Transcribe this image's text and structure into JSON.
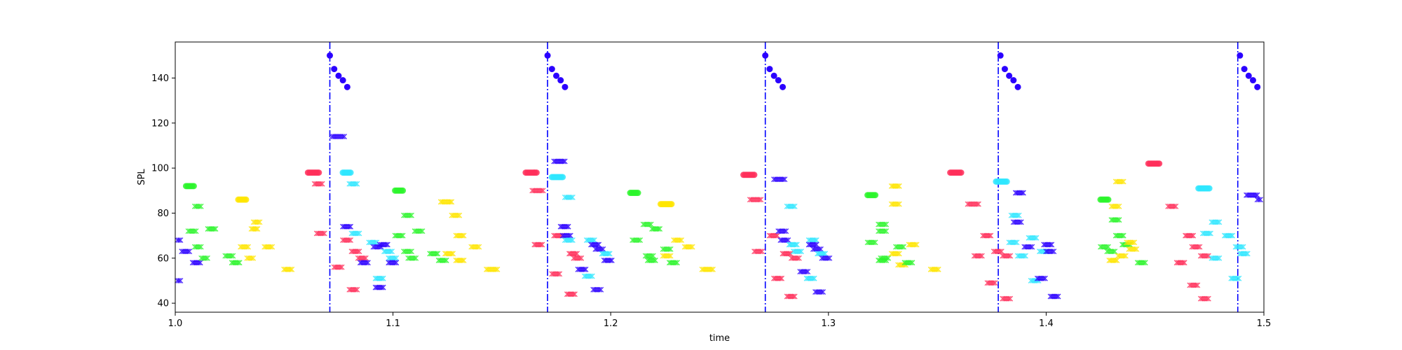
{
  "chart_data": {
    "type": "scatter",
    "title": "",
    "xlabel": "time",
    "ylabel": "SPL",
    "xlim": [
      1.0,
      1.5
    ],
    "ylim": [
      36,
      156
    ],
    "xticks": [
      1.0,
      1.1,
      1.2,
      1.3,
      1.4,
      1.5
    ],
    "xtick_labels": [
      "1.0",
      "1.1",
      "1.2",
      "1.3",
      "1.4",
      "1.5"
    ],
    "yticks": [
      40,
      60,
      80,
      100,
      120,
      140
    ],
    "ytick_labels": [
      "40",
      "60",
      "80",
      "100",
      "120",
      "140"
    ],
    "grid": false,
    "legend": "none",
    "colors": {
      "red": "#ff2f5a",
      "yellow": "#ffe500",
      "green": "#2bf52b",
      "cyan": "#2ee6ff",
      "blue": "#2b00ff",
      "vline": "#0000ff"
    },
    "vlines": [
      1.071,
      1.171,
      1.271,
      1.378,
      1.488
    ],
    "onset_markers": [
      {
        "x": 1.071,
        "y": 150
      },
      {
        "x": 1.073,
        "y": 144
      },
      {
        "x": 1.075,
        "y": 141
      },
      {
        "x": 1.077,
        "y": 139
      },
      {
        "x": 1.079,
        "y": 136
      },
      {
        "x": 1.171,
        "y": 150
      },
      {
        "x": 1.173,
        "y": 144
      },
      {
        "x": 1.175,
        "y": 141
      },
      {
        "x": 1.177,
        "y": 139
      },
      {
        "x": 1.179,
        "y": 136
      },
      {
        "x": 1.271,
        "y": 150
      },
      {
        "x": 1.273,
        "y": 144
      },
      {
        "x": 1.275,
        "y": 141
      },
      {
        "x": 1.277,
        "y": 139
      },
      {
        "x": 1.279,
        "y": 136
      },
      {
        "x": 1.379,
        "y": 150
      },
      {
        "x": 1.381,
        "y": 144
      },
      {
        "x": 1.383,
        "y": 141
      },
      {
        "x": 1.385,
        "y": 139
      },
      {
        "x": 1.387,
        "y": 136
      },
      {
        "x": 1.489,
        "y": 150
      },
      {
        "x": 1.491,
        "y": 144
      },
      {
        "x": 1.493,
        "y": 141
      },
      {
        "x": 1.495,
        "y": 139
      },
      {
        "x": 1.497,
        "y": 136
      }
    ],
    "notes": [
      {
        "c": "blue",
        "x0": 1.0,
        "x1": 1.004,
        "y": 50
      },
      {
        "c": "blue",
        "x0": 1.0,
        "x1": 1.004,
        "y": 68
      },
      {
        "c": "blue",
        "x0": 1.002,
        "x1": 1.008,
        "y": 63
      },
      {
        "c": "blue",
        "x0": 1.007,
        "x1": 1.013,
        "y": 58
      },
      {
        "c": "green",
        "x0": 1.004,
        "x1": 1.01,
        "y": 92,
        "dot": true
      },
      {
        "c": "green",
        "x0": 1.005,
        "x1": 1.011,
        "y": 72
      },
      {
        "c": "green",
        "x0": 1.008,
        "x1": 1.013,
        "y": 83
      },
      {
        "c": "green",
        "x0": 1.008,
        "x1": 1.013,
        "y": 65
      },
      {
        "c": "green",
        "x0": 1.011,
        "x1": 1.016,
        "y": 60
      },
      {
        "c": "green",
        "x0": 1.014,
        "x1": 1.02,
        "y": 73
      },
      {
        "c": "green",
        "x0": 1.022,
        "x1": 1.028,
        "y": 61
      },
      {
        "c": "green",
        "x0": 1.025,
        "x1": 1.031,
        "y": 58
      },
      {
        "c": "yellow",
        "x0": 1.028,
        "x1": 1.034,
        "y": 86,
        "dot": true
      },
      {
        "c": "yellow",
        "x0": 1.029,
        "x1": 1.035,
        "y": 65
      },
      {
        "c": "yellow",
        "x0": 1.032,
        "x1": 1.037,
        "y": 60
      },
      {
        "c": "yellow",
        "x0": 1.034,
        "x1": 1.039,
        "y": 73
      },
      {
        "c": "yellow",
        "x0": 1.035,
        "x1": 1.04,
        "y": 76
      },
      {
        "c": "yellow",
        "x0": 1.04,
        "x1": 1.046,
        "y": 65
      },
      {
        "c": "yellow",
        "x0": 1.049,
        "x1": 1.055,
        "y": 55
      },
      {
        "c": "red",
        "x0": 1.06,
        "x1": 1.067,
        "y": 98,
        "dot": true
      },
      {
        "c": "red",
        "x0": 1.063,
        "x1": 1.069,
        "y": 93
      },
      {
        "c": "red",
        "x0": 1.064,
        "x1": 1.07,
        "y": 71
      },
      {
        "c": "blue",
        "x0": 1.071,
        "x1": 1.079,
        "y": 114
      },
      {
        "c": "red",
        "x0": 1.072,
        "x1": 1.078,
        "y": 56
      },
      {
        "c": "red",
        "x0": 1.076,
        "x1": 1.082,
        "y": 68
      },
      {
        "c": "blue",
        "x0": 1.076,
        "x1": 1.082,
        "y": 74
      },
      {
        "c": "cyan",
        "x0": 1.076,
        "x1": 1.082,
        "y": 98,
        "dot": true
      },
      {
        "c": "cyan",
        "x0": 1.079,
        "x1": 1.085,
        "y": 93
      },
      {
        "c": "red",
        "x0": 1.079,
        "x1": 1.085,
        "y": 46
      },
      {
        "c": "red",
        "x0": 1.08,
        "x1": 1.086,
        "y": 63
      },
      {
        "c": "cyan",
        "x0": 1.08,
        "x1": 1.086,
        "y": 71
      },
      {
        "c": "red",
        "x0": 1.083,
        "x1": 1.089,
        "y": 60
      },
      {
        "c": "blue",
        "x0": 1.084,
        "x1": 1.09,
        "y": 58
      },
      {
        "c": "cyan",
        "x0": 1.088,
        "x1": 1.094,
        "y": 67
      },
      {
        "c": "blue",
        "x0": 1.09,
        "x1": 1.096,
        "y": 65
      },
      {
        "c": "cyan",
        "x0": 1.091,
        "x1": 1.097,
        "y": 51
      },
      {
        "c": "blue",
        "x0": 1.091,
        "x1": 1.097,
        "y": 47
      },
      {
        "c": "blue",
        "x0": 1.093,
        "x1": 1.099,
        "y": 66
      },
      {
        "c": "cyan",
        "x0": 1.095,
        "x1": 1.101,
        "y": 63
      },
      {
        "c": "cyan",
        "x0": 1.097,
        "x1": 1.103,
        "y": 60
      },
      {
        "c": "blue",
        "x0": 1.097,
        "x1": 1.103,
        "y": 58
      },
      {
        "c": "green",
        "x0": 1.1,
        "x1": 1.106,
        "y": 90,
        "dot": true
      },
      {
        "c": "green",
        "x0": 1.1,
        "x1": 1.106,
        "y": 70
      },
      {
        "c": "green",
        "x0": 1.104,
        "x1": 1.11,
        "y": 63
      },
      {
        "c": "green",
        "x0": 1.106,
        "x1": 1.112,
        "y": 60
      },
      {
        "c": "green",
        "x0": 1.104,
        "x1": 1.11,
        "y": 79
      },
      {
        "c": "green",
        "x0": 1.109,
        "x1": 1.115,
        "y": 72
      },
      {
        "c": "green",
        "x0": 1.116,
        "x1": 1.122,
        "y": 62
      },
      {
        "c": "green",
        "x0": 1.12,
        "x1": 1.126,
        "y": 59
      },
      {
        "c": "yellow",
        "x0": 1.121,
        "x1": 1.128,
        "y": 85
      },
      {
        "c": "yellow",
        "x0": 1.123,
        "x1": 1.129,
        "y": 62
      },
      {
        "c": "yellow",
        "x0": 1.126,
        "x1": 1.132,
        "y": 79
      },
      {
        "c": "yellow",
        "x0": 1.128,
        "x1": 1.134,
        "y": 70
      },
      {
        "c": "yellow",
        "x0": 1.128,
        "x1": 1.134,
        "y": 59
      },
      {
        "c": "yellow",
        "x0": 1.135,
        "x1": 1.141,
        "y": 65
      },
      {
        "c": "yellow",
        "x0": 1.142,
        "x1": 1.149,
        "y": 55
      },
      {
        "c": "red",
        "x0": 1.16,
        "x1": 1.167,
        "y": 98,
        "dot": true
      },
      {
        "c": "red",
        "x0": 1.163,
        "x1": 1.17,
        "y": 90
      },
      {
        "c": "red",
        "x0": 1.164,
        "x1": 1.17,
        "y": 66
      },
      {
        "c": "blue",
        "x0": 1.173,
        "x1": 1.18,
        "y": 103
      },
      {
        "c": "cyan",
        "x0": 1.172,
        "x1": 1.179,
        "y": 96,
        "dot": true
      },
      {
        "c": "red",
        "x0": 1.172,
        "x1": 1.178,
        "y": 53
      },
      {
        "c": "red",
        "x0": 1.173,
        "x1": 1.179,
        "y": 70
      },
      {
        "c": "blue",
        "x0": 1.176,
        "x1": 1.182,
        "y": 74
      },
      {
        "c": "blue",
        "x0": 1.177,
        "x1": 1.183,
        "y": 70
      },
      {
        "c": "cyan",
        "x0": 1.178,
        "x1": 1.184,
        "y": 87
      },
      {
        "c": "cyan",
        "x0": 1.178,
        "x1": 1.184,
        "y": 68
      },
      {
        "c": "red",
        "x0": 1.179,
        "x1": 1.185,
        "y": 44
      },
      {
        "c": "red",
        "x0": 1.18,
        "x1": 1.186,
        "y": 62
      },
      {
        "c": "red",
        "x0": 1.182,
        "x1": 1.188,
        "y": 60
      },
      {
        "c": "blue",
        "x0": 1.184,
        "x1": 1.19,
        "y": 55
      },
      {
        "c": "cyan",
        "x0": 1.187,
        "x1": 1.193,
        "y": 52
      },
      {
        "c": "cyan",
        "x0": 1.188,
        "x1": 1.194,
        "y": 68
      },
      {
        "c": "blue",
        "x0": 1.19,
        "x1": 1.196,
        "y": 66
      },
      {
        "c": "blue",
        "x0": 1.191,
        "x1": 1.197,
        "y": 46
      },
      {
        "c": "blue",
        "x0": 1.192,
        "x1": 1.198,
        "y": 64
      },
      {
        "c": "cyan",
        "x0": 1.195,
        "x1": 1.201,
        "y": 62
      },
      {
        "c": "blue",
        "x0": 1.196,
        "x1": 1.202,
        "y": 59
      },
      {
        "c": "green",
        "x0": 1.208,
        "x1": 1.214,
        "y": 89,
        "dot": true
      },
      {
        "c": "green",
        "x0": 1.209,
        "x1": 1.215,
        "y": 68
      },
      {
        "c": "green",
        "x0": 1.214,
        "x1": 1.22,
        "y": 75
      },
      {
        "c": "green",
        "x0": 1.215,
        "x1": 1.221,
        "y": 61
      },
      {
        "c": "green",
        "x0": 1.216,
        "x1": 1.222,
        "y": 59
      },
      {
        "c": "green",
        "x0": 1.218,
        "x1": 1.224,
        "y": 73
      },
      {
        "c": "yellow",
        "x0": 1.222,
        "x1": 1.229,
        "y": 84,
        "dot": true
      },
      {
        "c": "green",
        "x0": 1.223,
        "x1": 1.229,
        "y": 64
      },
      {
        "c": "yellow",
        "x0": 1.223,
        "x1": 1.229,
        "y": 61
      },
      {
        "c": "green",
        "x0": 1.226,
        "x1": 1.232,
        "y": 58
      },
      {
        "c": "yellow",
        "x0": 1.228,
        "x1": 1.234,
        "y": 68
      },
      {
        "c": "yellow",
        "x0": 1.233,
        "x1": 1.239,
        "y": 65
      },
      {
        "c": "yellow",
        "x0": 1.241,
        "x1": 1.248,
        "y": 55
      },
      {
        "c": "red",
        "x0": 1.26,
        "x1": 1.267,
        "y": 97,
        "dot": true
      },
      {
        "c": "red",
        "x0": 1.263,
        "x1": 1.27,
        "y": 86
      },
      {
        "c": "red",
        "x0": 1.265,
        "x1": 1.271,
        "y": 63
      },
      {
        "c": "blue",
        "x0": 1.274,
        "x1": 1.281,
        "y": 95
      },
      {
        "c": "red",
        "x0": 1.272,
        "x1": 1.278,
        "y": 70
      },
      {
        "c": "red",
        "x0": 1.274,
        "x1": 1.28,
        "y": 51
      },
      {
        "c": "blue",
        "x0": 1.276,
        "x1": 1.282,
        "y": 72
      },
      {
        "c": "blue",
        "x0": 1.277,
        "x1": 1.283,
        "y": 68
      },
      {
        "c": "cyan",
        "x0": 1.28,
        "x1": 1.286,
        "y": 83
      },
      {
        "c": "red",
        "x0": 1.28,
        "x1": 1.286,
        "y": 43
      },
      {
        "c": "red",
        "x0": 1.278,
        "x1": 1.284,
        "y": 62
      },
      {
        "c": "cyan",
        "x0": 1.281,
        "x1": 1.287,
        "y": 66
      },
      {
        "c": "red",
        "x0": 1.282,
        "x1": 1.288,
        "y": 60
      },
      {
        "c": "cyan",
        "x0": 1.283,
        "x1": 1.289,
        "y": 63
      },
      {
        "c": "blue",
        "x0": 1.286,
        "x1": 1.292,
        "y": 54
      },
      {
        "c": "cyan",
        "x0": 1.289,
        "x1": 1.295,
        "y": 51
      },
      {
        "c": "cyan",
        "x0": 1.29,
        "x1": 1.296,
        "y": 68
      },
      {
        "c": "blue",
        "x0": 1.29,
        "x1": 1.296,
        "y": 66
      },
      {
        "c": "blue",
        "x0": 1.293,
        "x1": 1.299,
        "y": 45
      },
      {
        "c": "blue",
        "x0": 1.292,
        "x1": 1.298,
        "y": 64
      },
      {
        "c": "cyan",
        "x0": 1.294,
        "x1": 1.3,
        "y": 62
      },
      {
        "c": "blue",
        "x0": 1.296,
        "x1": 1.302,
        "y": 60
      },
      {
        "c": "green",
        "x0": 1.317,
        "x1": 1.323,
        "y": 88,
        "dot": true
      },
      {
        "c": "green",
        "x0": 1.317,
        "x1": 1.323,
        "y": 67
      },
      {
        "c": "green",
        "x0": 1.322,
        "x1": 1.328,
        "y": 75
      },
      {
        "c": "green",
        "x0": 1.322,
        "x1": 1.328,
        "y": 72
      },
      {
        "c": "green",
        "x0": 1.323,
        "x1": 1.329,
        "y": 60
      },
      {
        "c": "green",
        "x0": 1.322,
        "x1": 1.328,
        "y": 59
      },
      {
        "c": "yellow",
        "x0": 1.328,
        "x1": 1.334,
        "y": 92
      },
      {
        "c": "yellow",
        "x0": 1.328,
        "x1": 1.334,
        "y": 84
      },
      {
        "c": "yellow",
        "x0": 1.328,
        "x1": 1.334,
        "y": 62
      },
      {
        "c": "green",
        "x0": 1.33,
        "x1": 1.336,
        "y": 65
      },
      {
        "c": "yellow",
        "x0": 1.331,
        "x1": 1.337,
        "y": 57
      },
      {
        "c": "green",
        "x0": 1.334,
        "x1": 1.34,
        "y": 58
      },
      {
        "c": "yellow",
        "x0": 1.336,
        "x1": 1.342,
        "y": 66
      },
      {
        "c": "yellow",
        "x0": 1.346,
        "x1": 1.352,
        "y": 55
      },
      {
        "c": "red",
        "x0": 1.355,
        "x1": 1.362,
        "y": 98,
        "dot": true
      },
      {
        "c": "red",
        "x0": 1.363,
        "x1": 1.37,
        "y": 84
      },
      {
        "c": "red",
        "x0": 1.366,
        "x1": 1.372,
        "y": 61
      },
      {
        "c": "red",
        "x0": 1.37,
        "x1": 1.376,
        "y": 70
      },
      {
        "c": "red",
        "x0": 1.372,
        "x1": 1.378,
        "y": 49
      },
      {
        "c": "red",
        "x0": 1.375,
        "x1": 1.381,
        "y": 63
      },
      {
        "c": "cyan",
        "x0": 1.376,
        "x1": 1.383,
        "y": 94,
        "dot": true
      },
      {
        "c": "red",
        "x0": 1.379,
        "x1": 1.385,
        "y": 42
      },
      {
        "c": "red",
        "x0": 1.379,
        "x1": 1.385,
        "y": 61
      },
      {
        "c": "blue",
        "x0": 1.385,
        "x1": 1.391,
        "y": 89
      },
      {
        "c": "cyan",
        "x0": 1.383,
        "x1": 1.389,
        "y": 79
      },
      {
        "c": "blue",
        "x0": 1.384,
        "x1": 1.39,
        "y": 76
      },
      {
        "c": "cyan",
        "x0": 1.382,
        "x1": 1.388,
        "y": 67
      },
      {
        "c": "cyan",
        "x0": 1.386,
        "x1": 1.392,
        "y": 61
      },
      {
        "c": "blue",
        "x0": 1.389,
        "x1": 1.395,
        "y": 65
      },
      {
        "c": "cyan",
        "x0": 1.391,
        "x1": 1.397,
        "y": 69
      },
      {
        "c": "cyan",
        "x0": 1.392,
        "x1": 1.398,
        "y": 50
      },
      {
        "c": "blue",
        "x0": 1.395,
        "x1": 1.401,
        "y": 51
      },
      {
        "c": "cyan",
        "x0": 1.396,
        "x1": 1.402,
        "y": 63
      },
      {
        "c": "blue",
        "x0": 1.398,
        "x1": 1.404,
        "y": 66
      },
      {
        "c": "blue",
        "x0": 1.399,
        "x1": 1.405,
        "y": 63
      },
      {
        "c": "blue",
        "x0": 1.401,
        "x1": 1.407,
        "y": 43
      },
      {
        "c": "green",
        "x0": 1.424,
        "x1": 1.43,
        "y": 86,
        "dot": true
      },
      {
        "c": "green",
        "x0": 1.424,
        "x1": 1.43,
        "y": 65
      },
      {
        "c": "green",
        "x0": 1.427,
        "x1": 1.433,
        "y": 63
      },
      {
        "c": "green",
        "x0": 1.429,
        "x1": 1.435,
        "y": 77
      },
      {
        "c": "yellow",
        "x0": 1.429,
        "x1": 1.435,
        "y": 83
      },
      {
        "c": "yellow",
        "x0": 1.431,
        "x1": 1.437,
        "y": 94
      },
      {
        "c": "yellow",
        "x0": 1.428,
        "x1": 1.434,
        "y": 59
      },
      {
        "c": "yellow",
        "x0": 1.432,
        "x1": 1.438,
        "y": 61
      },
      {
        "c": "green",
        "x0": 1.431,
        "x1": 1.437,
        "y": 70
      },
      {
        "c": "green",
        "x0": 1.434,
        "x1": 1.44,
        "y": 66
      },
      {
        "c": "yellow",
        "x0": 1.436,
        "x1": 1.442,
        "y": 67
      },
      {
        "c": "yellow",
        "x0": 1.437,
        "x1": 1.443,
        "y": 64
      },
      {
        "c": "green",
        "x0": 1.441,
        "x1": 1.447,
        "y": 58
      },
      {
        "c": "red",
        "x0": 1.446,
        "x1": 1.453,
        "y": 102,
        "dot": true
      },
      {
        "c": "red",
        "x0": 1.455,
        "x1": 1.461,
        "y": 83
      },
      {
        "c": "red",
        "x0": 1.459,
        "x1": 1.465,
        "y": 58
      },
      {
        "c": "red",
        "x0": 1.463,
        "x1": 1.469,
        "y": 70
      },
      {
        "c": "red",
        "x0": 1.465,
        "x1": 1.471,
        "y": 48
      },
      {
        "c": "red",
        "x0": 1.466,
        "x1": 1.472,
        "y": 65
      },
      {
        "c": "cyan",
        "x0": 1.469,
        "x1": 1.476,
        "y": 91,
        "dot": true
      },
      {
        "c": "red",
        "x0": 1.47,
        "x1": 1.476,
        "y": 42
      },
      {
        "c": "red",
        "x0": 1.47,
        "x1": 1.476,
        "y": 61
      },
      {
        "c": "cyan",
        "x0": 1.471,
        "x1": 1.477,
        "y": 71
      },
      {
        "c": "cyan",
        "x0": 1.475,
        "x1": 1.481,
        "y": 76
      },
      {
        "c": "cyan",
        "x0": 1.475,
        "x1": 1.481,
        "y": 60
      },
      {
        "c": "cyan",
        "x0": 1.481,
        "x1": 1.487,
        "y": 70
      },
      {
        "c": "cyan",
        "x0": 1.484,
        "x1": 1.49,
        "y": 51
      },
      {
        "c": "cyan",
        "x0": 1.486,
        "x1": 1.492,
        "y": 65
      },
      {
        "c": "cyan",
        "x0": 1.488,
        "x1": 1.494,
        "y": 62
      },
      {
        "c": "blue",
        "x0": 1.491,
        "x1": 1.498,
        "y": 88
      },
      {
        "c": "blue",
        "x0": 1.496,
        "x1": 1.5,
        "y": 86
      },
      {
        "c": "green",
        "x0": 1.499,
        "x1": 1.5,
        "y": 59
      }
    ]
  }
}
